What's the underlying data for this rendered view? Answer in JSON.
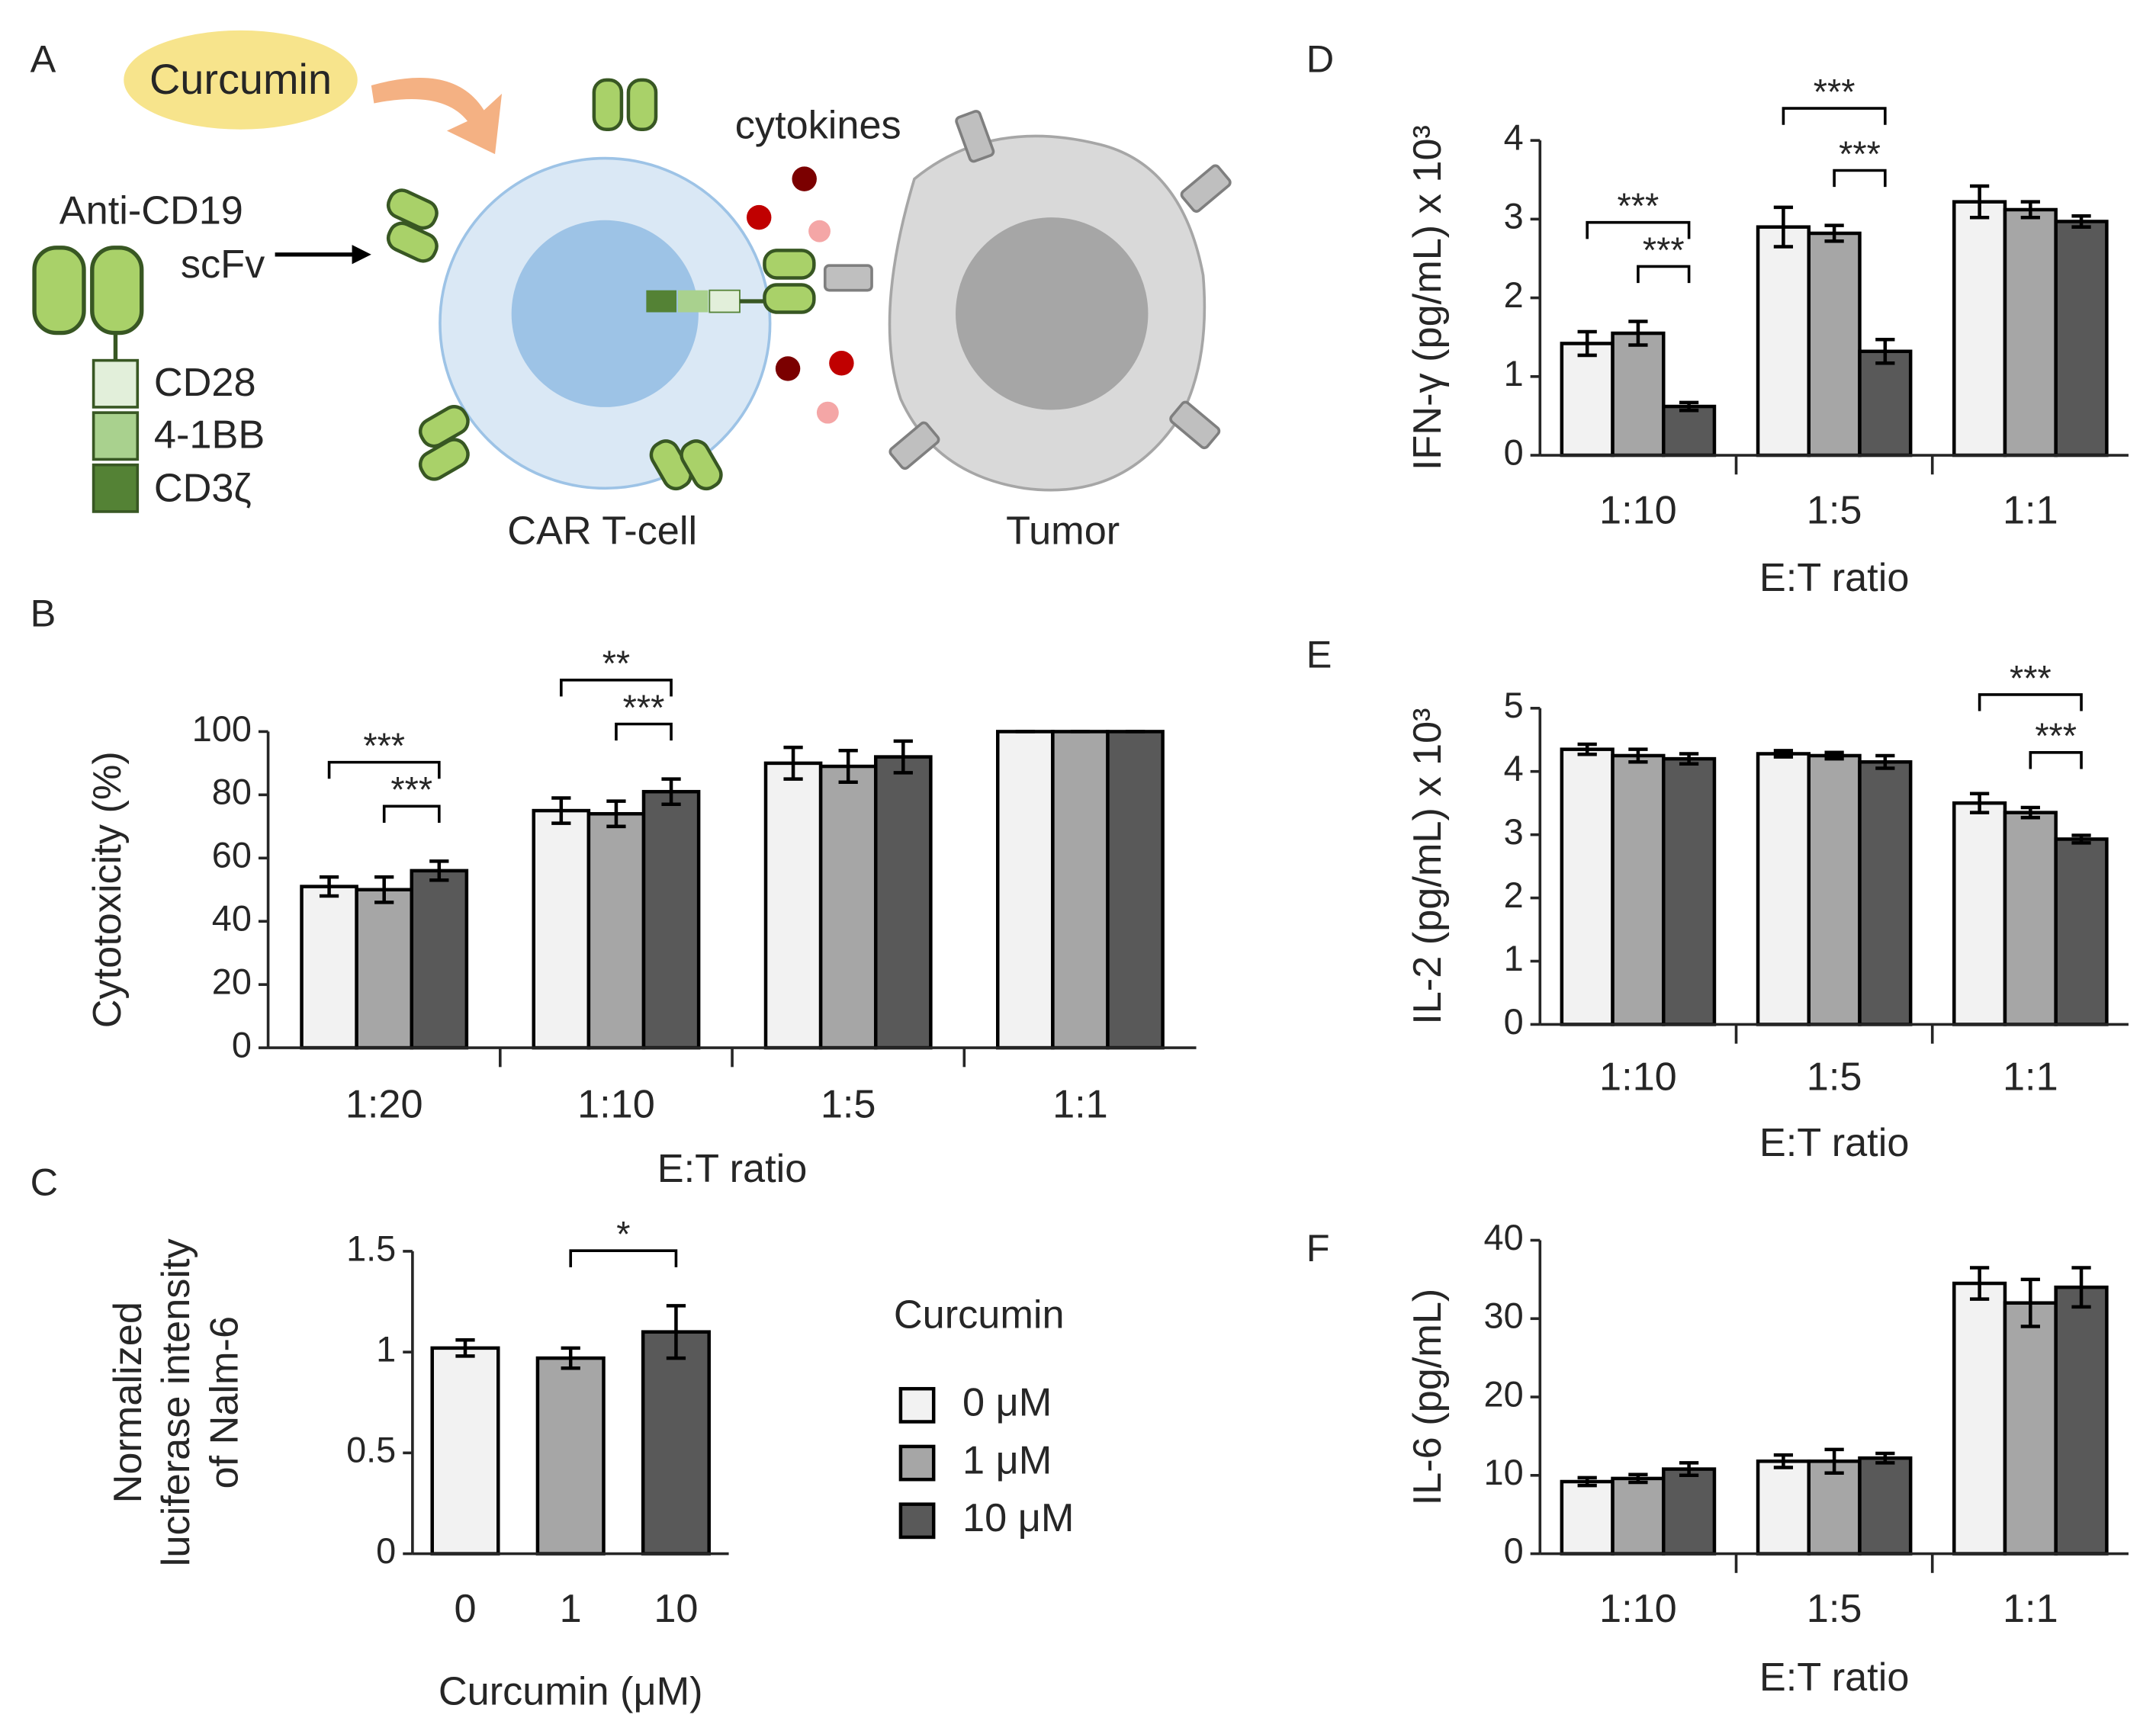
{
  "diagram": {
    "panel": "A",
    "curcumin": "Curcumin",
    "cytokines": "cytokines",
    "antibody": "Anti-CD19",
    "scfv": "scFv",
    "cd28": "CD28",
    "bb": "4-1BB",
    "cd3": "CD3ζ",
    "tcell": "CAR T-cell",
    "tumor": "Tumor"
  },
  "chart_data": [
    {
      "type": "grouped_bar",
      "panel": "B",
      "ylabel": [
        "Cytotoxicity (%)"
      ],
      "xlabel": "E:T ratio",
      "categories": [
        "1:20",
        "1:10",
        "1:5",
        "1:1"
      ],
      "series": [
        {
          "color": "#f2f2f2",
          "values": [
            51,
            75,
            90,
            100
          ],
          "errors": [
            3,
            4,
            5,
            0
          ]
        },
        {
          "color": "#a6a6a6",
          "values": [
            50,
            74,
            89,
            100
          ],
          "errors": [
            4,
            4,
            5,
            0
          ]
        },
        {
          "color": "#595959",
          "values": [
            56,
            81,
            92,
            100
          ],
          "errors": [
            3,
            4,
            5,
            0
          ]
        }
      ],
      "ylim": [
        0,
        100
      ],
      "yticks": [
        0,
        20,
        40,
        60,
        80,
        100
      ],
      "brackets": [
        {
          "label": "***",
          "category": 0,
          "from": 1,
          "to": 2
        },
        {
          "label": "***",
          "category": 0,
          "from": 0,
          "to": 2
        },
        {
          "label": "***",
          "category": 1,
          "from": 1,
          "to": 2
        },
        {
          "label": "**",
          "category": 1,
          "from": 0,
          "to": 2
        }
      ]
    },
    {
      "type": "bar",
      "panel": "C",
      "ylabel": [
        "Normalized",
        "luciferase intensity",
        "of Nalm-6"
      ],
      "xlabel": "Curcumin (μM)",
      "categories": [
        "0",
        "1",
        "10"
      ],
      "values": [
        1.02,
        0.97,
        1.1
      ],
      "errors": [
        0.04,
        0.05,
        0.13
      ],
      "colors": [
        "#f2f2f2",
        "#a6a6a6",
        "#595959"
      ],
      "ylim": [
        0,
        1.5
      ],
      "yticks": [
        0,
        0.5,
        1,
        1.5
      ],
      "brackets": [
        {
          "label": "*",
          "from": 1,
          "to": 2
        }
      ],
      "legend": {
        "title": "Curcumin",
        "labels": [
          "0 μM",
          "1 μM",
          "10 μM"
        ]
      }
    },
    {
      "type": "grouped_bar",
      "panel": "D",
      "ylabel": [
        "IFN-γ (pg/mL) x 10³"
      ],
      "xlabel": "E:T ratio",
      "categories": [
        "1:10",
        "1:5",
        "1:1"
      ],
      "series": [
        {
          "color": "#f2f2f2",
          "values": [
            1.42,
            2.9,
            3.22
          ],
          "errors": [
            0.15,
            0.25,
            0.2
          ]
        },
        {
          "color": "#a6a6a6",
          "values": [
            1.55,
            2.82,
            3.12
          ],
          "errors": [
            0.15,
            0.1,
            0.1
          ]
        },
        {
          "color": "#595959",
          "values": [
            0.62,
            1.32,
            2.97
          ],
          "errors": [
            0.05,
            0.15,
            0.07
          ]
        }
      ],
      "ylim": [
        0,
        4
      ],
      "yticks": [
        0,
        1,
        2,
        3,
        4
      ],
      "brackets": [
        {
          "label": "***",
          "category": 0,
          "from": 1,
          "to": 2
        },
        {
          "label": "***",
          "category": 0,
          "from": 0,
          "to": 2
        },
        {
          "label": "***",
          "category": 1,
          "from": 1,
          "to": 2
        },
        {
          "label": "***",
          "category": 1,
          "from": 0,
          "to": 2
        }
      ]
    },
    {
      "type": "grouped_bar",
      "panel": "E",
      "ylabel": [
        "IL-2 (pg/mL) x 10³"
      ],
      "xlabel": "E:T ratio",
      "categories": [
        "1:10",
        "1:5",
        "1:1"
      ],
      "series": [
        {
          "color": "#f2f2f2",
          "values": [
            4.35,
            4.28,
            3.5
          ],
          "errors": [
            0.08,
            0.05,
            0.15
          ]
        },
        {
          "color": "#a6a6a6",
          "values": [
            4.25,
            4.25,
            3.35
          ],
          "errors": [
            0.1,
            0.05,
            0.08
          ]
        },
        {
          "color": "#595959",
          "values": [
            4.2,
            4.15,
            2.93
          ],
          "errors": [
            0.08,
            0.1,
            0.06
          ]
        }
      ],
      "ylim": [
        0,
        5
      ],
      "yticks": [
        0,
        1,
        2,
        3,
        4,
        5
      ],
      "brackets": [
        {
          "label": "***",
          "category": 2,
          "from": 1,
          "to": 2
        },
        {
          "label": "***",
          "category": 2,
          "from": 0,
          "to": 2
        }
      ]
    },
    {
      "type": "grouped_bar",
      "panel": "F",
      "ylabel": [
        "IL-6 (pg/mL)"
      ],
      "xlabel": "E:T ratio",
      "categories": [
        "1:10",
        "1:5",
        "1:1"
      ],
      "series": [
        {
          "color": "#f2f2f2",
          "values": [
            9.2,
            11.8,
            34.5
          ],
          "errors": [
            0.5,
            0.8,
            2
          ]
        },
        {
          "color": "#a6a6a6",
          "values": [
            9.6,
            11.8,
            32
          ],
          "errors": [
            0.5,
            1.5,
            3
          ]
        },
        {
          "color": "#595959",
          "values": [
            10.8,
            12.2,
            34
          ],
          "errors": [
            0.8,
            0.6,
            2.5
          ]
        }
      ],
      "ylim": [
        0,
        40
      ],
      "yticks": [
        0,
        10,
        20,
        30,
        40
      ]
    }
  ]
}
